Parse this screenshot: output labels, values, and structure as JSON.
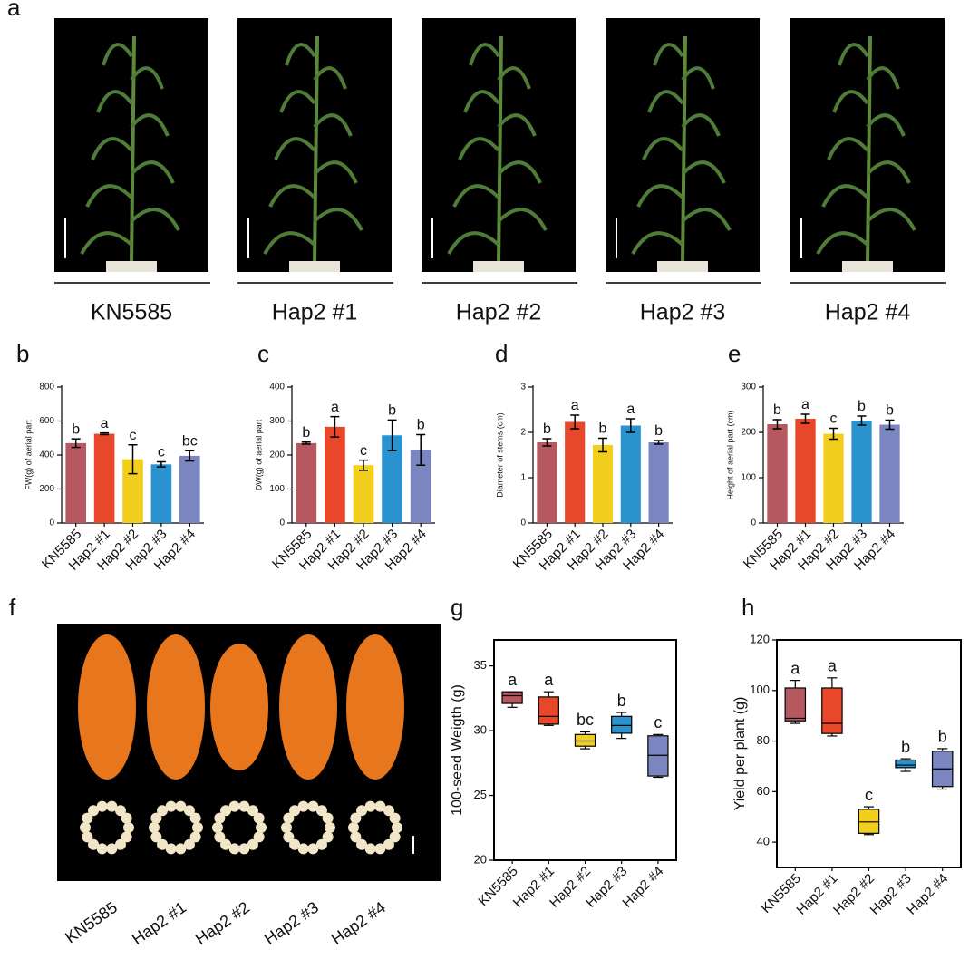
{
  "panel_a": {
    "label": "a",
    "photo_labels": [
      "KN5585",
      "Hap2 #1",
      "Hap2 #2",
      "Hap2 #3",
      "Hap2 #4"
    ]
  },
  "panel_f": {
    "label": "f",
    "photo_labels": [
      "KN5585",
      "Hap2 #1",
      "Hap2 #2",
      "Hap2 #3",
      "Hap2 #4"
    ]
  },
  "chart_data": [
    {
      "type": "bar",
      "label": "b",
      "y_label": "FW(g) of aerial part",
      "categories": [
        "KN5585",
        "Hap2 #1",
        "Hap2 #2",
        "Hap2 #3",
        "Hap2 #4"
      ],
      "values": [
        470,
        525,
        375,
        345,
        395
      ],
      "errors": [
        25,
        5,
        85,
        15,
        30
      ],
      "annotations": [
        "b",
        "a",
        "c",
        "c",
        "bc"
      ],
      "colors": [
        "#b5585f",
        "#e8472a",
        "#f2cf1c",
        "#2a93cf",
        "#7b86c1"
      ],
      "ylim": [
        0,
        800
      ],
      "yticks": [
        0,
        200,
        400,
        600,
        800
      ]
    },
    {
      "type": "bar",
      "label": "c",
      "y_label": "DW(g) of aerial part",
      "categories": [
        "KN5585",
        "Hap2 #1",
        "Hap2 #2",
        "Hap2 #3",
        "Hap2 #4"
      ],
      "values": [
        235,
        283,
        170,
        258,
        215
      ],
      "errors": [
        3,
        30,
        15,
        45,
        45
      ],
      "annotations": [
        "b",
        "a",
        "c",
        "b",
        "b"
      ],
      "colors": [
        "#b5585f",
        "#e8472a",
        "#f2cf1c",
        "#2a93cf",
        "#7b86c1"
      ],
      "ylim": [
        0,
        400
      ],
      "yticks": [
        0,
        100,
        200,
        300,
        400
      ]
    },
    {
      "type": "bar",
      "label": "d",
      "y_label": "Diameter of stems (cm)",
      "categories": [
        "KN5585",
        "Hap2 #1",
        "Hap2 #2",
        "Hap2 #3",
        "Hap2 #4"
      ],
      "values": [
        1.78,
        2.23,
        1.72,
        2.15,
        1.78
      ],
      "errors": [
        0.08,
        0.15,
        0.15,
        0.15,
        0.04
      ],
      "annotations": [
        "b",
        "a",
        "b",
        "a",
        "b"
      ],
      "colors": [
        "#b5585f",
        "#e8472a",
        "#f2cf1c",
        "#2a93cf",
        "#7b86c1"
      ],
      "ylim": [
        0,
        3
      ],
      "yticks": [
        0,
        1,
        2,
        3
      ]
    },
    {
      "type": "bar",
      "label": "e",
      "y_label": "Height of aerial part (cm)",
      "categories": [
        "KN5585",
        "Hap2 #1",
        "Hap2 #2",
        "Hap2 #3",
        "Hap2 #4"
      ],
      "values": [
        218,
        230,
        197,
        226,
        217
      ],
      "errors": [
        10,
        10,
        12,
        10,
        10
      ],
      "annotations": [
        "b",
        "a",
        "c",
        "b",
        "b"
      ],
      "colors": [
        "#b5585f",
        "#e8472a",
        "#f2cf1c",
        "#2a93cf",
        "#7b86c1"
      ],
      "ylim": [
        0,
        300
      ],
      "yticks": [
        0,
        100,
        200,
        300
      ]
    },
    {
      "type": "box",
      "label": "g",
      "y_label": "100-seed Weigth (g)",
      "categories": [
        "KN5585",
        "Hap2 #1",
        "Hap2 #2",
        "Hap2 #3",
        "Hap2 #4"
      ],
      "min": [
        31.8,
        30.4,
        28.6,
        29.4,
        26.4
      ],
      "q1": [
        32.1,
        30.5,
        28.8,
        29.8,
        26.5
      ],
      "median": [
        32.7,
        31.1,
        29.2,
        30.4,
        28.1
      ],
      "q3": [
        33.0,
        32.6,
        29.7,
        31.1,
        29.6
      ],
      "max": [
        33.0,
        33.0,
        29.9,
        31.4,
        29.7
      ],
      "annotations": [
        "a",
        "a",
        "bc",
        "b",
        "c"
      ],
      "colors": [
        "#b5585f",
        "#e8472a",
        "#f2cf1c",
        "#2a93cf",
        "#7b86c1"
      ],
      "ylim": [
        20,
        37
      ],
      "yticks": [
        20,
        25,
        30,
        35
      ]
    },
    {
      "type": "box",
      "label": "h",
      "y_label": "Yield per plant (g)",
      "categories": [
        "KN5585",
        "Hap2 #1",
        "Hap2 #2",
        "Hap2 #3",
        "Hap2 #4"
      ],
      "min": [
        87,
        82,
        43,
        68,
        61
      ],
      "q1": [
        88,
        83,
        43.5,
        69.5,
        62
      ],
      "median": [
        89,
        87,
        48,
        70.5,
        69
      ],
      "q3": [
        101,
        101,
        53,
        72.5,
        76
      ],
      "max": [
        104,
        105,
        54,
        73,
        77
      ],
      "annotations": [
        "a",
        "a",
        "c",
        "b",
        "b"
      ],
      "colors": [
        "#b5585f",
        "#e8472a",
        "#f2cf1c",
        "#2a93cf",
        "#7b86c1"
      ],
      "ylim": [
        30,
        120
      ],
      "yticks": [
        40,
        60,
        80,
        100,
        120
      ]
    }
  ]
}
